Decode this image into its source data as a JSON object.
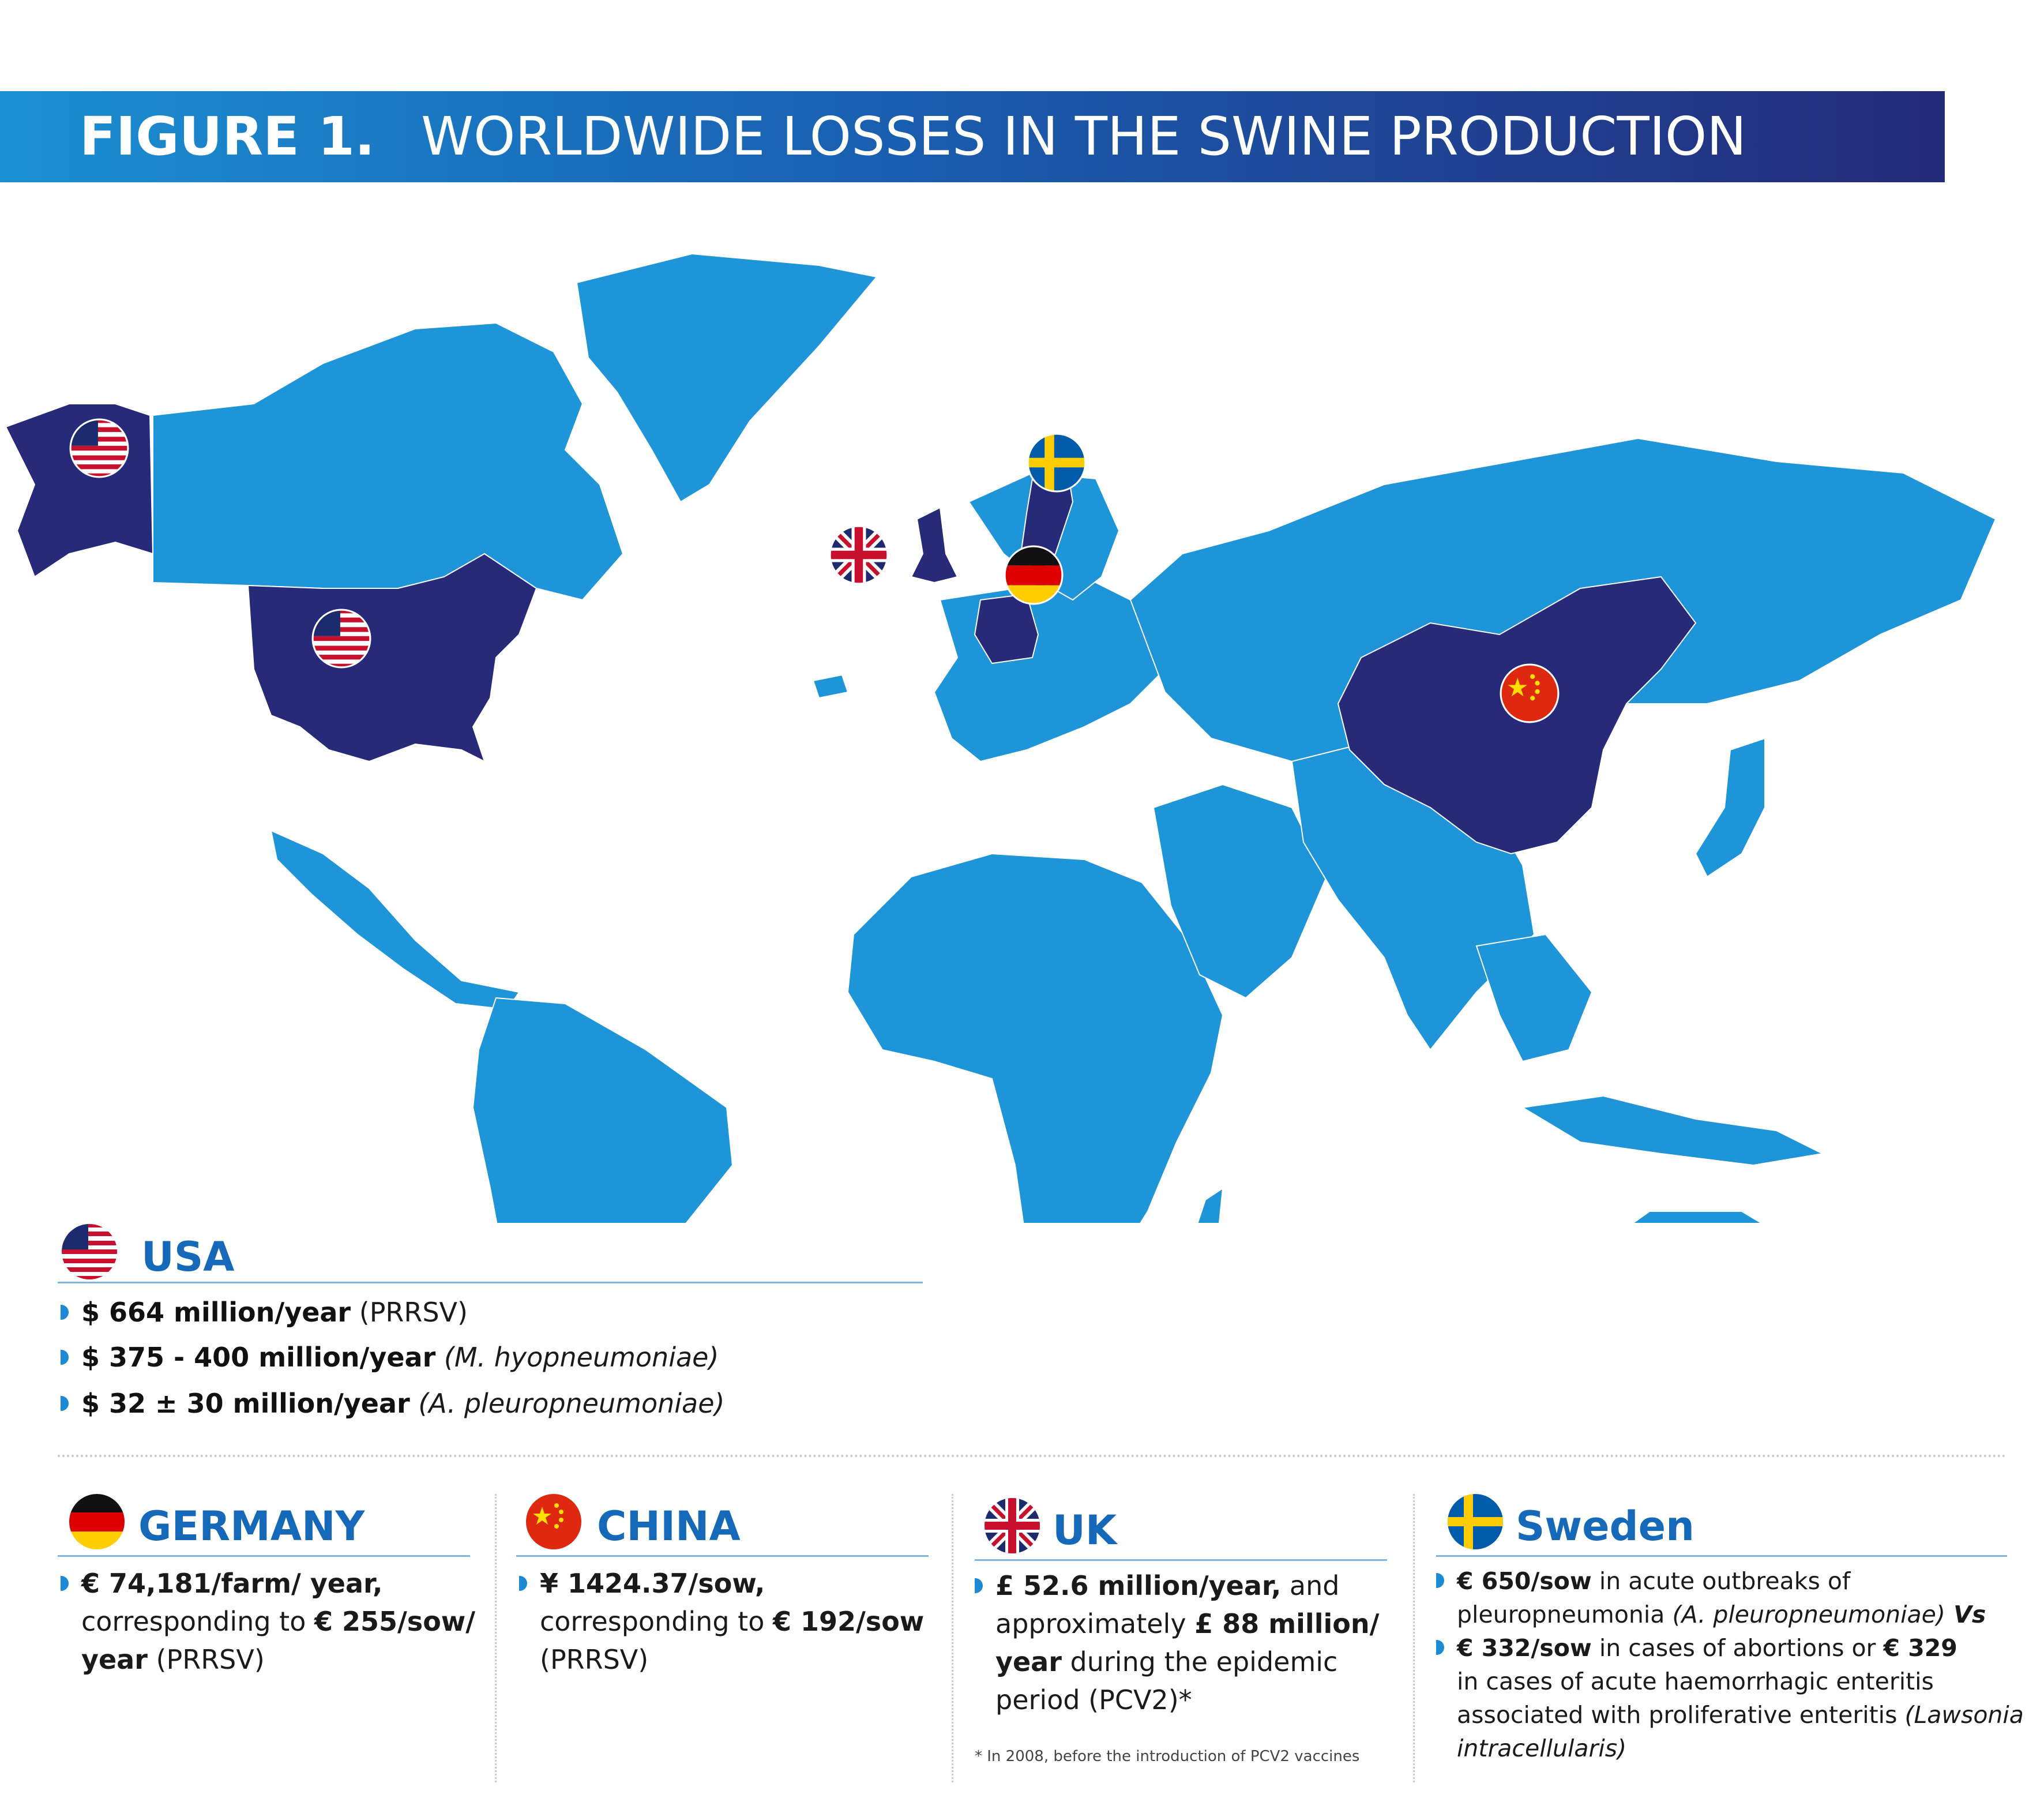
{
  "header": {
    "label": "FIGURE 1.",
    "title": "WORLDWIDE LOSSES IN THE SWINE PRODUCTION"
  },
  "colors": {
    "map_land": "#1e95d8",
    "highlight_country": "#262a78",
    "banner_start": "#1b8fd2",
    "banner_end": "#252a7a",
    "title_blue": "#1669b8",
    "bullet": "#1a8ad4"
  },
  "map": {
    "highlighted_countries": [
      "USA",
      "UK",
      "Germany",
      "Sweden",
      "China"
    ],
    "flags": [
      "us-flag-icon",
      "uk-flag-icon",
      "germany-flag-icon",
      "sweden-flag-icon",
      "china-flag-icon"
    ]
  },
  "usa": {
    "name": "USA",
    "items": [
      {
        "bold": "$ 664 million/year",
        "rest": " (PRRSV)",
        "rest_italic": false
      },
      {
        "bold": "$ 375 - 400 million/year",
        "rest": " (M. hyopneumoniae)",
        "rest_italic": true
      },
      {
        "bold": "$ 32 ± 30 million/year",
        "rest": " (A. pleuropneumoniae)",
        "rest_italic": true
      }
    ]
  },
  "germany": {
    "name": "GERMANY",
    "line1": "€ 74,181/farm/ year,",
    "line2_pre": "corresponding to ",
    "line2_bold": "€ 255/sow/",
    "line3_bold": "year",
    "line3_rest": " (PRRSV)"
  },
  "china": {
    "name": "CHINA",
    "line1": "¥ 1424.37/sow,",
    "line2_pre": "corresponding to ",
    "line2_bold": "€ 192/sow",
    "line3": "(PRRSV)"
  },
  "uk": {
    "name": "UK",
    "line1_bold": "£ 52.6 million/year,",
    "line1_rest": " and",
    "line2_pre": "approximately ",
    "line2_bold": "£ 88 million/",
    "line3_bold": "year",
    "line3_rest": " during the epidemic",
    "line4": "period (PCV2)*",
    "footnote": "* In 2008, before the introduction of PCV2 vaccines"
  },
  "sweden": {
    "name": "Sweden",
    "b1_bold": "€ 650/sow",
    "b1_rest": " in acute outbreaks of",
    "b1_line2": "pleuropneumonia ",
    "b1_line2_italic": "(A. pleuropneumoniae)",
    "b1_vs": " Vs",
    "b2_bold": "€ 332/sow",
    "b2_mid": " in cases of abortions or ",
    "b2_bold2": "€ 329",
    "b2_line2": "in cases of acute haemorrhagic enteritis",
    "b2_line3": "associated with proliferative enteritis ",
    "b2_line3_italic": "(Lawsonia",
    "b2_line4_italic": "intracellularis)"
  }
}
